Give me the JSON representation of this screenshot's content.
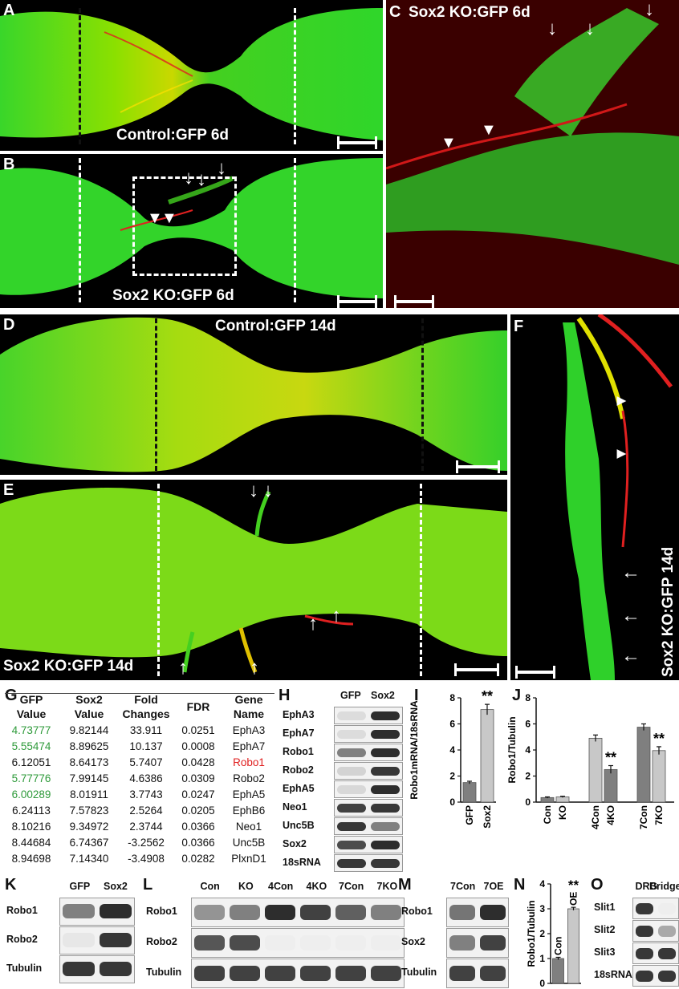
{
  "panels": {
    "A": {
      "label": "A",
      "caption": "Control:GFP 6d"
    },
    "B": {
      "label": "B",
      "caption": "Sox2 KO:GFP 6d"
    },
    "C": {
      "label": "C",
      "caption": "Sox2 KO:GFP 6d"
    },
    "D": {
      "label": "D",
      "caption": "Control:GFP 14d"
    },
    "E": {
      "label": "E",
      "caption": "Sox2 KO:GFP 14d"
    },
    "F": {
      "label": "F",
      "caption": "Sox2 KO:GFP 14d"
    },
    "G": {
      "label": "G"
    },
    "H": {
      "label": "H"
    },
    "I": {
      "label": "I"
    },
    "J": {
      "label": "J"
    },
    "K": {
      "label": "K"
    },
    "L": {
      "label": "L"
    },
    "M": {
      "label": "M"
    },
    "N": {
      "label": "N"
    },
    "O": {
      "label": "O"
    }
  },
  "table_g": {
    "headers": [
      [
        "GFP",
        "Value"
      ],
      [
        "Sox2",
        "Value"
      ],
      [
        "Fold",
        "Changes"
      ],
      [
        "FDR",
        ""
      ],
      [
        "Gene",
        "Name"
      ]
    ],
    "rows": [
      {
        "gfp": "4.73777",
        "sox2": "9.82144",
        "fold": "33.911",
        "fdr": "0.0251",
        "gene": "EphA3",
        "gfp_color": "#2e9a3a",
        "gene_color": "#111111"
      },
      {
        "gfp": "5.55474",
        "sox2": "8.89625",
        "fold": "10.137",
        "fdr": "0.0008",
        "gene": "EphA7",
        "gfp_color": "#2e9a3a",
        "gene_color": "#111111"
      },
      {
        "gfp": "6.12051",
        "sox2": "8.64173",
        "fold": "5.7407",
        "fdr": "0.0428",
        "gene": "Robo1",
        "gfp_color": "#111111",
        "gene_color": "#e02020"
      },
      {
        "gfp": "5.77776",
        "sox2": "7.99145",
        "fold": "4.6386",
        "fdr": "0.0309",
        "gene": "Robo2",
        "gfp_color": "#2e9a3a",
        "gene_color": "#111111"
      },
      {
        "gfp": "6.00289",
        "sox2": "8.01911",
        "fold": "3.7743",
        "fdr": "0.0247",
        "gene": "EphA5",
        "gfp_color": "#2e9a3a",
        "gene_color": "#111111"
      },
      {
        "gfp": "6.24113",
        "sox2": "7.57823",
        "fold": "2.5264",
        "fdr": "0.0205",
        "gene": "EphB6",
        "gfp_color": "#111111",
        "gene_color": "#111111"
      },
      {
        "gfp": "8.10216",
        "sox2": "9.34972",
        "fold": "2.3744",
        "fdr": "0.0366",
        "gene": "Neo1",
        "gfp_color": "#111111",
        "gene_color": "#111111"
      },
      {
        "gfp": "8.44684",
        "sox2": "6.74367",
        "fold": "-3.2562",
        "fdr": "0.0366",
        "gene": "Unc5B",
        "gfp_color": "#111111",
        "gene_color": "#111111"
      },
      {
        "gfp": "8.94698",
        "sox2": "7.14340",
        "fold": "-3.4908",
        "fdr": "0.0282",
        "gene": "PlxnD1",
        "gfp_color": "#111111",
        "gene_color": "#111111"
      }
    ]
  },
  "gel_h": {
    "columns": [
      "GFP",
      "Sox2"
    ],
    "rows": [
      "EphA3",
      "EphA7",
      "Robo1",
      "Robo2",
      "EphA5",
      "Neo1",
      "Unc5B",
      "Sox2",
      "18sRNA"
    ]
  },
  "chart_data": [
    {
      "type": "bar",
      "panel": "I",
      "categories": [
        "GFP",
        "Sox2"
      ],
      "values": [
        1.5,
        7.1
      ],
      "errors": [
        0.1,
        0.4
      ],
      "ylabel": "Robo1mRNA/18sRNA",
      "ylim": [
        0,
        8
      ],
      "yticks": [
        "0",
        "2",
        "4",
        "6",
        "8"
      ],
      "significance": [
        {
          "category": "Sox2",
          "mark": "**"
        }
      ],
      "colors": [
        "#7f7f7f",
        "#c8c8c8"
      ]
    },
    {
      "type": "bar",
      "panel": "J",
      "categories": [
        "Con",
        "KO",
        "4Con",
        "4KO",
        "7Con",
        "7KO"
      ],
      "values": [
        0.35,
        0.4,
        4.9,
        2.5,
        5.75,
        3.95
      ],
      "errors": [
        0.05,
        0.05,
        0.25,
        0.3,
        0.25,
        0.3
      ],
      "ylabel": "Robo1/Tubulin",
      "ylim": [
        0,
        8
      ],
      "yticks": [
        "0",
        "2",
        "4",
        "6",
        "8"
      ],
      "significance": [
        {
          "category": "4KO",
          "mark": "**"
        },
        {
          "category": "7KO",
          "mark": "**"
        }
      ],
      "colors": [
        "#7f7f7f",
        "#c8c8c8",
        "#c8c8c8",
        "#7f7f7f",
        "#7f7f7f",
        "#c8c8c8"
      ]
    },
    {
      "type": "bar",
      "panel": "N",
      "categories": [
        "Con",
        "OE"
      ],
      "values": [
        1.0,
        3.0
      ],
      "errors": [
        0.05,
        0.06
      ],
      "ylabel": "Robo1/Tubulin",
      "ylim": [
        0,
        4
      ],
      "yticks": [
        "0",
        "1",
        "2",
        "3",
        "4"
      ],
      "significance": [
        {
          "category": "OE",
          "mark": "**"
        }
      ],
      "colors": [
        "#7f7f7f",
        "#c8c8c8"
      ]
    }
  ],
  "blot_k": {
    "columns": [
      "GFP",
      "Sox2"
    ],
    "rows": [
      "Robo1",
      "Robo2",
      "Tubulin"
    ]
  },
  "blot_l": {
    "columns": [
      "Con",
      "KO",
      "4Con",
      "4KO",
      "7Con",
      "7KO"
    ],
    "rows": [
      "Robo1",
      "Robo2",
      "Tubulin"
    ]
  },
  "blot_m": {
    "columns": [
      "7Con",
      "7OE"
    ],
    "rows": [
      "Robo1",
      "Sox2",
      "Tubulin"
    ]
  },
  "gel_o": {
    "columns": [
      "DRG",
      "Bridge"
    ],
    "rows": [
      "Slit1",
      "Slit2",
      "Slit3",
      "18sRNA"
    ]
  }
}
